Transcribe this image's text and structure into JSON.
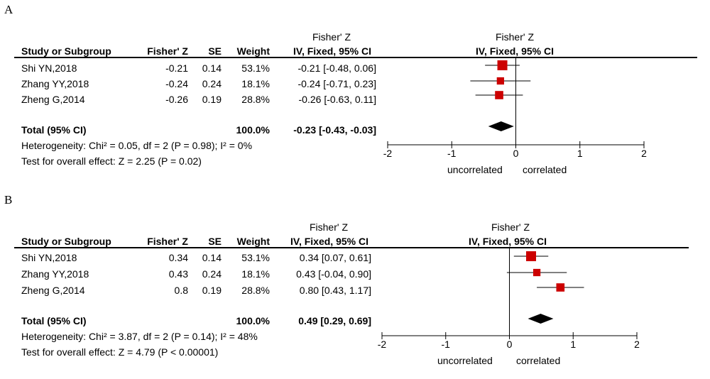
{
  "panels": [
    {
      "label": "A",
      "headers": {
        "study": "Study or Subgroup",
        "effect": "Fisher' Z",
        "se": "SE",
        "weight": "Weight",
        "ci_top": "Fisher' Z",
        "ci_bottom": "IV, Fixed, 95% CI",
        "plot_top": "Fisher' Z",
        "plot_bottom": "IV, Fixed, 95% CI"
      },
      "rows": [
        {
          "study": "Shi YN,2018",
          "effect": "-0.21",
          "se": "0.14",
          "weight": "53.1%",
          "ci": "-0.21 [-0.48, 0.06]"
        },
        {
          "study": "Zhang YY,2018",
          "effect": "-0.24",
          "se": "0.24",
          "weight": "18.1%",
          "ci": "-0.24 [-0.71, 0.23]"
        },
        {
          "study": "Zheng G,2014",
          "effect": "-0.26",
          "se": "0.19",
          "weight": "28.8%",
          "ci": "-0.26 [-0.63, 0.11]"
        }
      ],
      "total": {
        "label": "Total (95% CI)",
        "weight": "100.0%",
        "ci": "-0.23 [-0.43, -0.03]"
      },
      "heterogeneity": "Heterogeneity: Chi² = 0.05, df = 2 (P = 0.98); I² = 0%",
      "overall": "Test for overall effect: Z = 2.25 (P = 0.02)",
      "axis_labels": {
        "left": "uncorrelated",
        "right": "correlated"
      }
    },
    {
      "label": "B",
      "headers": {
        "study": "Study or Subgroup",
        "effect": "Fisher' Z",
        "se": "SE",
        "weight": "Weight",
        "ci_top": "Fisher' Z",
        "ci_bottom": "IV, Fixed, 95% CI",
        "plot_top": "Fisher' Z",
        "plot_bottom": "IV, Fixed, 95% CI"
      },
      "rows": [
        {
          "study": "Shi YN,2018",
          "effect": "0.34",
          "se": "0.14",
          "weight": "53.1%",
          "ci": "0.34 [0.07, 0.61]"
        },
        {
          "study": "Zhang YY,2018",
          "effect": "0.43",
          "se": "0.24",
          "weight": "18.1%",
          "ci": "0.43 [-0.04, 0.90]"
        },
        {
          "study": "Zheng G,2014",
          "effect": "0.8",
          "se": "0.19",
          "weight": "28.8%",
          "ci": "0.80 [0.43, 1.17]"
        }
      ],
      "total": {
        "label": "Total (95% CI)",
        "weight": "100.0%",
        "ci": "0.49 [0.29, 0.69]"
      },
      "heterogeneity": "Heterogeneity: Chi² = 3.87, df = 2 (P = 0.14); I² = 48%",
      "overall": "Test for overall effect: Z = 4.79 (P < 0.00001)",
      "axis_labels": {
        "left": "uncorrelated",
        "right": "correlated"
      }
    }
  ],
  "chart_data": [
    {
      "type": "forest",
      "panel": "A",
      "title": "Fisher' Z",
      "subtitle": "IV, Fixed, 95% CI",
      "xlim": [
        -2,
        2
      ],
      "xticks": [
        -2,
        -1,
        0,
        1,
        2
      ],
      "studies": [
        {
          "name": "Shi YN,2018",
          "estimate": -0.21,
          "lower": -0.48,
          "upper": 0.06,
          "weight": 53.1
        },
        {
          "name": "Zhang YY,2018",
          "estimate": -0.24,
          "lower": -0.71,
          "upper": 0.23,
          "weight": 18.1
        },
        {
          "name": "Zheng G,2014",
          "estimate": -0.26,
          "lower": -0.63,
          "upper": 0.11,
          "weight": 28.8
        }
      ],
      "pooled": {
        "estimate": -0.23,
        "lower": -0.43,
        "upper": -0.03
      },
      "marker_color": "#cc0000"
    },
    {
      "type": "forest",
      "panel": "B",
      "title": "Fisher' Z",
      "subtitle": "IV, Fixed, 95% CI",
      "xlim": [
        -2,
        2
      ],
      "xticks": [
        -2,
        -1,
        0,
        1,
        2
      ],
      "studies": [
        {
          "name": "Shi YN,2018",
          "estimate": 0.34,
          "lower": 0.07,
          "upper": 0.61,
          "weight": 53.1
        },
        {
          "name": "Zhang YY,2018",
          "estimate": 0.43,
          "lower": -0.04,
          "upper": 0.9,
          "weight": 18.1
        },
        {
          "name": "Zheng G,2014",
          "estimate": 0.8,
          "lower": 0.43,
          "upper": 1.17,
          "weight": 28.8
        }
      ],
      "pooled": {
        "estimate": 0.49,
        "lower": 0.29,
        "upper": 0.69
      },
      "marker_color": "#cc0000"
    }
  ]
}
